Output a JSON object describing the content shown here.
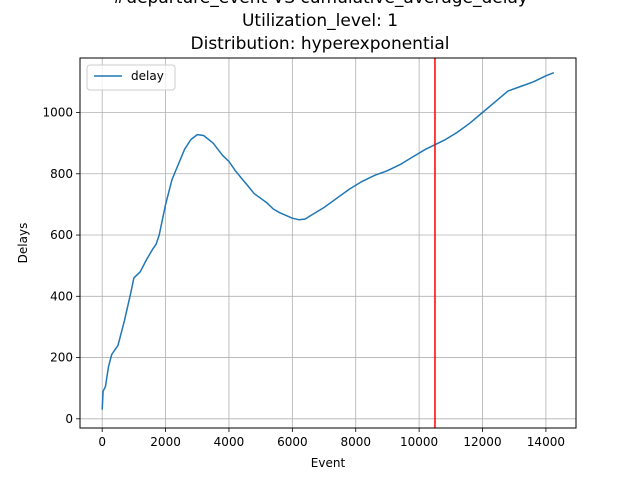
{
  "chart_data": {
    "type": "line",
    "title_lines": [
      "#departure_event VS cumulative_average_delay",
      "Utilization_level: 1",
      "Distribution: hyperexponential"
    ],
    "xlabel": "Event",
    "ylabel": "Delays",
    "xlim": [
      -700,
      14950
    ],
    "ylim": [
      -30,
      1178
    ],
    "xticks": [
      0,
      2000,
      4000,
      6000,
      8000,
      10000,
      12000,
      14000
    ],
    "yticks": [
      0,
      200,
      400,
      600,
      800,
      1000
    ],
    "grid": true,
    "legend": {
      "placement": "top-left",
      "entries": [
        "delay"
      ]
    },
    "series": [
      {
        "name": "delay",
        "color": "#1f77b4",
        "x": [
          0,
          30,
          100,
          200,
          300,
          500,
          700,
          900,
          1000,
          1200,
          1400,
          1600,
          1700,
          1800,
          1900,
          2000,
          2200,
          2400,
          2600,
          2800,
          3000,
          3200,
          3500,
          3800,
          4000,
          4200,
          4400,
          4600,
          4800,
          5000,
          5200,
          5400,
          5600,
          5800,
          6000,
          6200,
          6400,
          6600,
          7000,
          7400,
          7800,
          8200,
          8600,
          9000,
          9400,
          9800,
          10200,
          10500,
          10800,
          11200,
          11600,
          12000,
          12400,
          12800,
          13200,
          13600,
          14000,
          14250
        ],
        "values": [
          30,
          90,
          105,
          170,
          210,
          240,
          320,
          410,
          460,
          480,
          520,
          555,
          570,
          600,
          650,
          700,
          780,
          830,
          880,
          912,
          928,
          925,
          900,
          860,
          840,
          810,
          785,
          760,
          735,
          720,
          705,
          685,
          673,
          664,
          655,
          650,
          652,
          665,
          690,
          720,
          750,
          775,
          795,
          810,
          830,
          855,
          880,
          895,
          910,
          935,
          965,
          1000,
          1035,
          1070,
          1085,
          1100,
          1120,
          1130
        ]
      }
    ],
    "vertical_line": {
      "x": 10500,
      "color": "#ff0000"
    }
  }
}
